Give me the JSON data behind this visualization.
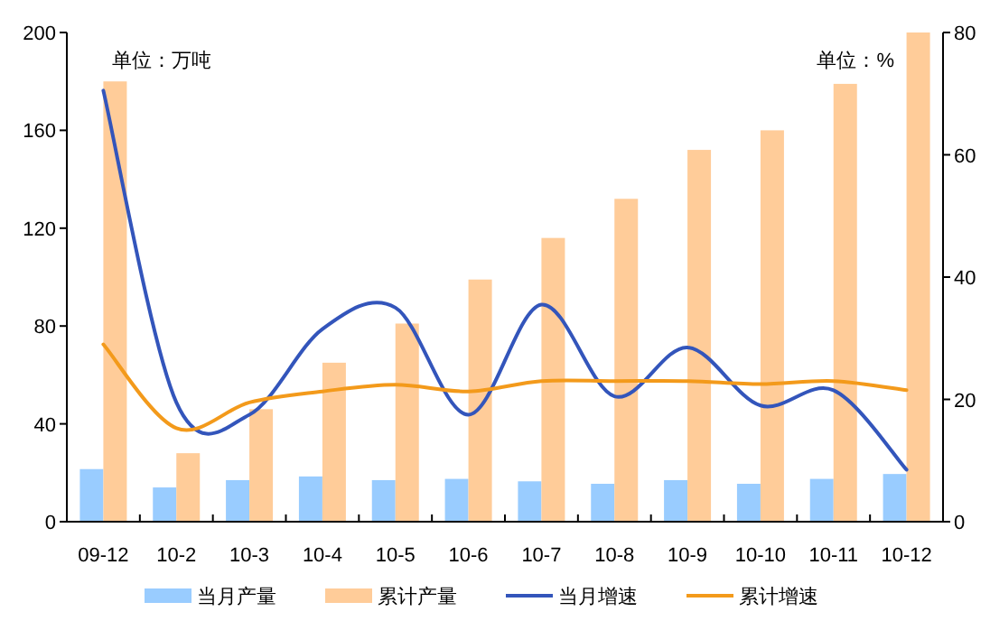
{
  "chart_data": {
    "type": "bar",
    "categories": [
      "09-12",
      "10-2",
      "10-3",
      "10-4",
      "10-5",
      "10-6",
      "10-7",
      "10-8",
      "10-9",
      "10-10",
      "10-11",
      "10-12"
    ],
    "series": [
      {
        "name": "当月产量",
        "color": "#99ccff",
        "values": [
          21.5,
          14,
          17,
          18.5,
          17,
          17.5,
          16.5,
          15.5,
          17,
          15.5,
          17.5,
          19.5
        ]
      },
      {
        "name": "累计产量",
        "color": "#ffcc99",
        "values": [
          180,
          28,
          46,
          65,
          81,
          99,
          116,
          132,
          152,
          160,
          179,
          200
        ]
      },
      {
        "name": "当月增速",
        "type": "line",
        "axis": "y2",
        "color": "#3355bb",
        "values": [
          70.5,
          19.5,
          17.5,
          31.5,
          35,
          17.5,
          35.5,
          20.5,
          28.5,
          19,
          21.5,
          8.5
        ]
      },
      {
        "name": "累计增速",
        "type": "line",
        "axis": "y2",
        "color": "#f39a1b",
        "values": [
          29,
          15.3,
          19.5,
          21.3,
          22.4,
          21.3,
          23,
          23,
          23,
          22.5,
          23,
          21.5
        ]
      }
    ],
    "ylim": [
      0,
      200
    ],
    "yticks": [
      0,
      40,
      80,
      120,
      160,
      200
    ],
    "y2lim": [
      0,
      80
    ],
    "y2ticks": [
      0,
      20,
      40,
      60,
      80
    ],
    "annotations": [
      "单位：万吨",
      "单位：%"
    ],
    "grid": false,
    "legend": "bottom"
  }
}
